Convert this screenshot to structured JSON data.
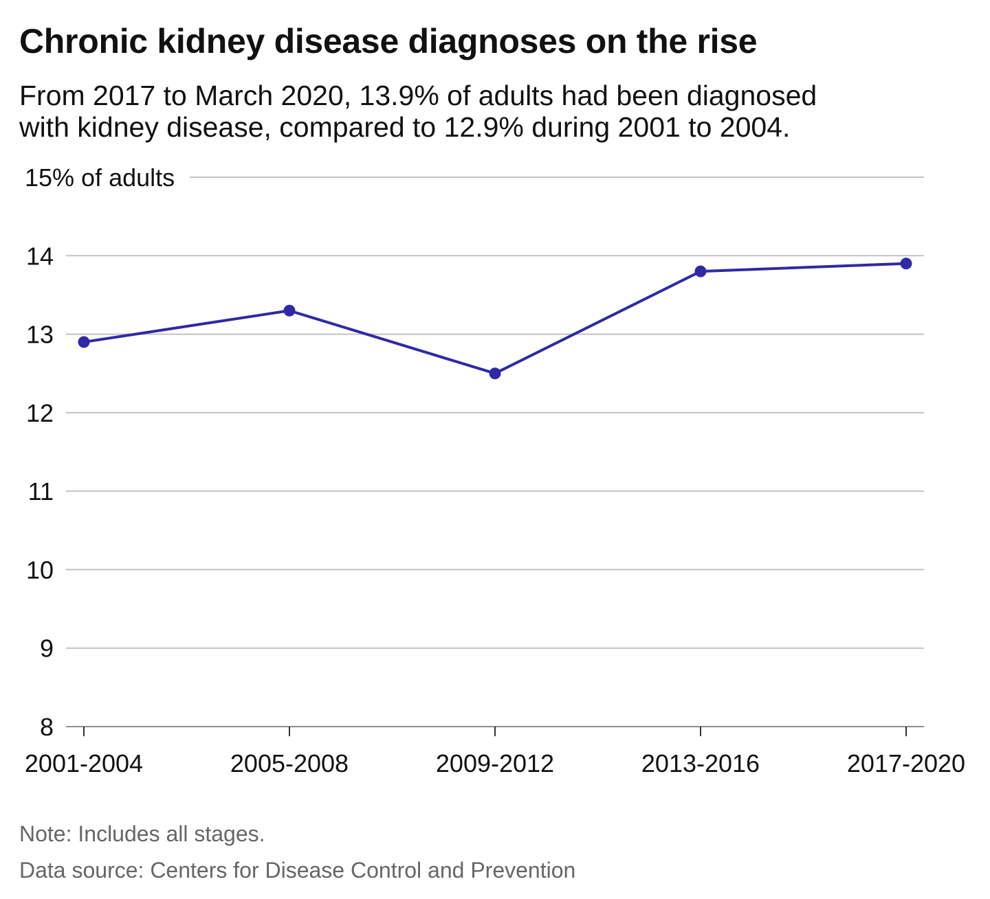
{
  "title": "Chronic kidney disease diagnoses on the rise",
  "subtitle_lines": [
    "From 2017 to March 2020, 13.9% of adults had been diagnosed",
    "with kidney disease, compared to 12.9% during 2001 to 2004."
  ],
  "note": "Note: Includes all stages.",
  "source": "Data source: Centers for Disease Control and Prevention",
  "colors": {
    "line": "#3029a6",
    "grid": "#c2c2c2",
    "text": "#111111",
    "muted": "#666666"
  },
  "chart_data": {
    "type": "line",
    "title": "Chronic kidney disease diagnoses on the rise",
    "ylabel": "15% of adults",
    "categories": [
      "2001-2004",
      "2005-2008",
      "2009-2012",
      "2013-2016",
      "2017-2020"
    ],
    "series": [
      {
        "values": [
          12.9,
          13.3,
          12.5,
          13.8,
          13.9
        ]
      }
    ],
    "ylim": [
      8,
      15
    ],
    "yticks": [
      8,
      9,
      10,
      11,
      12,
      13,
      14,
      15
    ],
    "ytick_labels": [
      "8",
      "9",
      "10",
      "11",
      "12",
      "13",
      "14",
      "15% of adults"
    ],
    "grid": true,
    "legend": "none"
  }
}
